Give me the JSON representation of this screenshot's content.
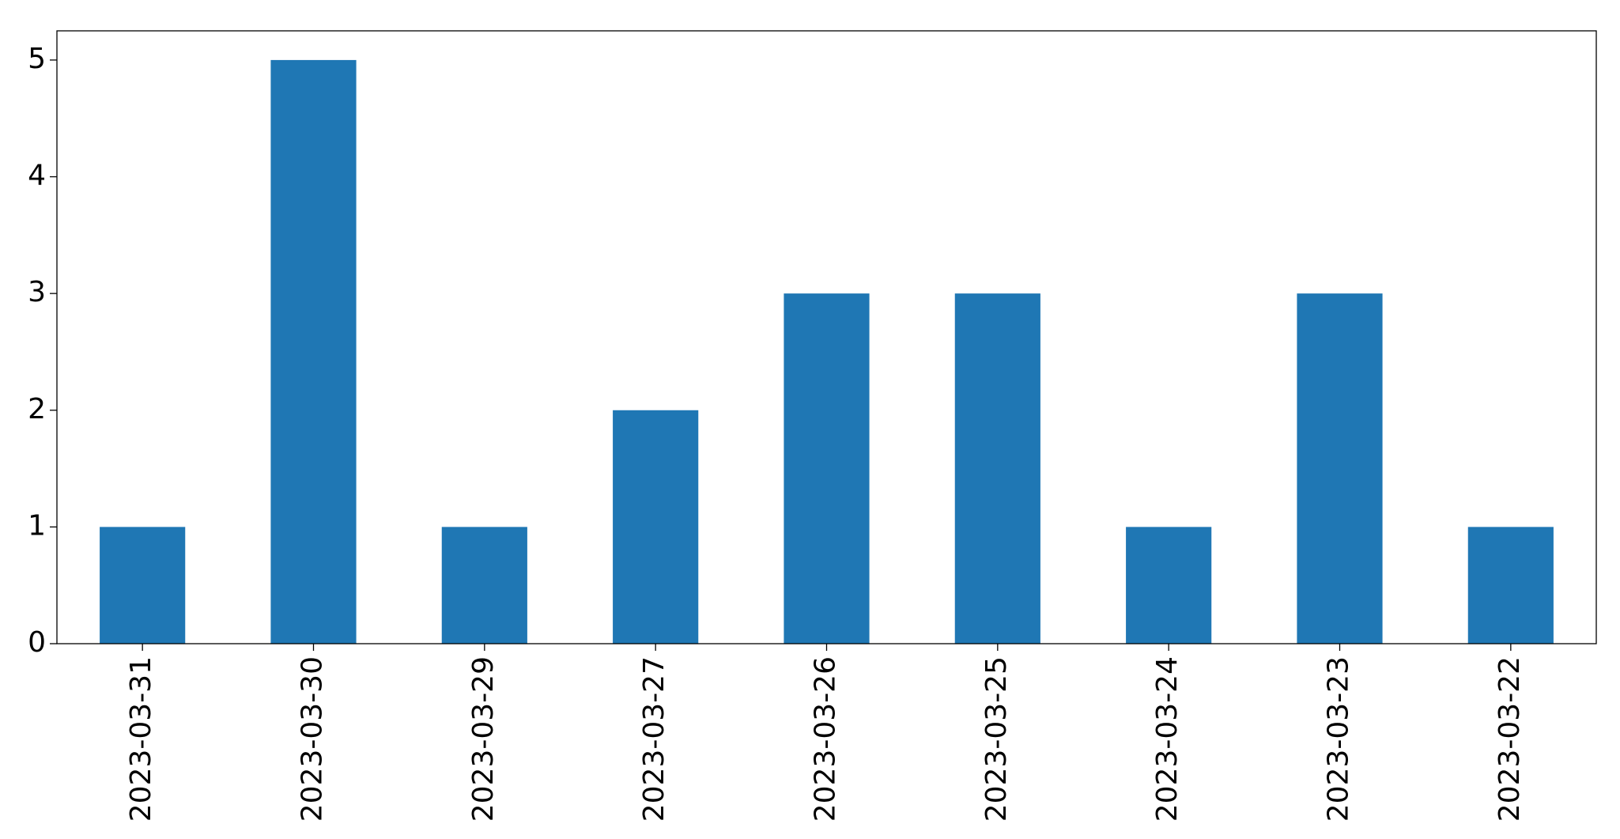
{
  "chart_data": {
    "type": "bar",
    "categories": [
      "2023-03-31",
      "2023-03-30",
      "2023-03-29",
      "2023-03-27",
      "2023-03-26",
      "2023-03-25",
      "2023-03-24",
      "2023-03-23",
      "2023-03-22"
    ],
    "values": [
      1,
      5,
      1,
      2,
      3,
      3,
      1,
      3,
      1
    ],
    "color": "#1f77b4",
    "ylim": [
      0,
      5.25
    ],
    "yticks": [
      0,
      1,
      2,
      3,
      4,
      5
    ],
    "grid": false
  }
}
